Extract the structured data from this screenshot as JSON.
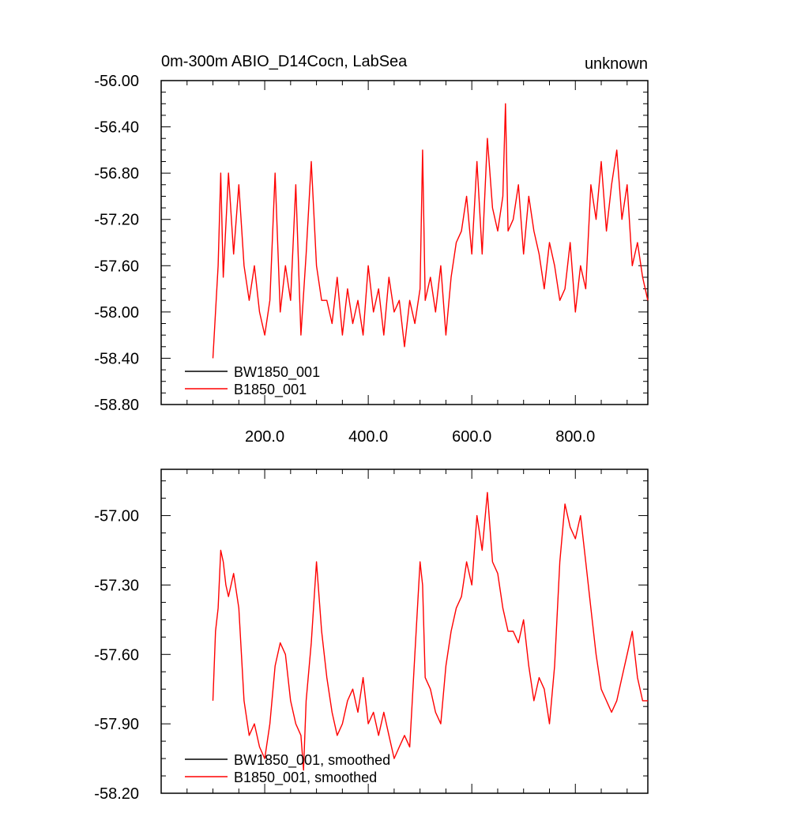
{
  "chart_data": [
    {
      "type": "line",
      "title": "0m-300m ABIO_D14Cocn, LabSea",
      "subtitle_right": "unknown",
      "xlim": [
        0,
        940
      ],
      "ylim": [
        -58.8,
        -56.0
      ],
      "xticks": [
        200,
        400,
        600,
        800
      ],
      "xtick_labels": [
        "200.0",
        "400.0",
        "600.0",
        "800.0"
      ],
      "yticks": [
        -56.0,
        -56.4,
        -56.8,
        -57.2,
        -57.6,
        -58.0,
        -58.4,
        -58.8
      ],
      "ytick_labels": [
        "-56.00",
        "-56.40",
        "-56.80",
        "-57.20",
        "-57.60",
        "-58.00",
        "-58.40",
        "-58.80"
      ],
      "legend": "bottom-left",
      "series": [
        {
          "name": "BW1850_001",
          "color": "#000000",
          "x": [],
          "y": []
        },
        {
          "name": "B1850_001",
          "color": "#ff0000",
          "x": [
            100,
            110,
            115,
            120,
            130,
            140,
            150,
            160,
            170,
            180,
            190,
            200,
            210,
            220,
            230,
            240,
            250,
            260,
            270,
            280,
            290,
            300,
            310,
            320,
            330,
            340,
            350,
            360,
            370,
            380,
            390,
            400,
            410,
            420,
            430,
            440,
            450,
            460,
            470,
            480,
            490,
            500,
            505,
            510,
            520,
            530,
            540,
            550,
            560,
            570,
            580,
            590,
            600,
            610,
            620,
            630,
            640,
            650,
            660,
            665,
            670,
            680,
            690,
            700,
            710,
            720,
            730,
            740,
            750,
            760,
            770,
            780,
            790,
            800,
            810,
            820,
            830,
            840,
            850,
            860,
            870,
            880,
            890,
            900,
            910,
            920,
            930,
            940
          ],
          "y": [
            -58.4,
            -57.6,
            -56.8,
            -57.7,
            -56.8,
            -57.5,
            -56.9,
            -57.6,
            -57.9,
            -57.6,
            -58.0,
            -58.2,
            -57.9,
            -56.8,
            -58.0,
            -57.6,
            -57.9,
            -56.9,
            -58.2,
            -57.5,
            -56.7,
            -57.6,
            -57.9,
            -57.9,
            -58.1,
            -57.7,
            -58.2,
            -57.8,
            -58.1,
            -57.9,
            -58.2,
            -57.6,
            -58.0,
            -57.8,
            -58.2,
            -57.7,
            -58.0,
            -57.9,
            -58.3,
            -57.9,
            -58.1,
            -57.8,
            -56.6,
            -57.9,
            -57.7,
            -58.0,
            -57.6,
            -58.2,
            -57.7,
            -57.4,
            -57.3,
            -57.0,
            -57.5,
            -56.7,
            -57.5,
            -56.5,
            -57.1,
            -57.3,
            -57.0,
            -56.2,
            -57.3,
            -57.2,
            -56.9,
            -57.5,
            -57.0,
            -57.3,
            -57.5,
            -57.8,
            -57.4,
            -57.6,
            -57.9,
            -57.8,
            -57.4,
            -58.0,
            -57.6,
            -57.8,
            -56.9,
            -57.2,
            -56.7,
            -57.3,
            -56.9,
            -56.6,
            -57.2,
            -56.9,
            -57.6,
            -57.4,
            -57.7,
            -57.9
          ]
        }
      ]
    },
    {
      "type": "line",
      "xlim": [
        0,
        940
      ],
      "ylim": [
        -58.2,
        -56.8
      ],
      "yticks": [
        -57.0,
        -57.3,
        -57.6,
        -57.9,
        -58.2
      ],
      "ytick_labels": [
        "-57.00",
        "-57.30",
        "-57.60",
        "-57.90",
        "-58.20"
      ],
      "legend": "bottom-left",
      "series": [
        {
          "name": "BW1850_001, smoothed",
          "color": "#000000",
          "x": [],
          "y": []
        },
        {
          "name": "B1850_001, smoothed",
          "color": "#ff0000",
          "x": [
            100,
            105,
            110,
            115,
            120,
            125,
            130,
            140,
            150,
            160,
            170,
            180,
            190,
            200,
            210,
            220,
            230,
            240,
            250,
            260,
            270,
            275,
            280,
            290,
            300,
            310,
            320,
            330,
            340,
            350,
            360,
            370,
            380,
            390,
            400,
            410,
            420,
            430,
            440,
            450,
            460,
            470,
            480,
            490,
            500,
            505,
            510,
            520,
            530,
            540,
            550,
            560,
            570,
            580,
            590,
            600,
            610,
            620,
            630,
            640,
            650,
            660,
            670,
            680,
            690,
            700,
            710,
            720,
            730,
            740,
            750,
            760,
            770,
            780,
            790,
            800,
            810,
            820,
            830,
            840,
            850,
            860,
            870,
            880,
            890,
            900,
            910,
            920,
            930,
            940
          ],
          "y": [
            -57.8,
            -57.5,
            -57.4,
            -57.15,
            -57.2,
            -57.3,
            -57.35,
            -57.25,
            -57.4,
            -57.8,
            -57.95,
            -57.9,
            -58.0,
            -58.05,
            -57.9,
            -57.65,
            -57.55,
            -57.6,
            -57.8,
            -57.9,
            -57.95,
            -58.1,
            -57.8,
            -57.55,
            -57.2,
            -57.5,
            -57.7,
            -57.85,
            -57.95,
            -57.9,
            -57.8,
            -57.75,
            -57.85,
            -57.7,
            -57.9,
            -57.85,
            -57.95,
            -57.85,
            -57.95,
            -58.05,
            -58.0,
            -57.95,
            -58.0,
            -57.6,
            -57.2,
            -57.3,
            -57.7,
            -57.75,
            -57.85,
            -57.9,
            -57.65,
            -57.5,
            -57.4,
            -57.35,
            -57.2,
            -57.3,
            -57.0,
            -57.15,
            -56.9,
            -57.2,
            -57.25,
            -57.4,
            -57.5,
            -57.5,
            -57.55,
            -57.45,
            -57.65,
            -57.8,
            -57.7,
            -57.75,
            -57.9,
            -57.65,
            -57.2,
            -56.95,
            -57.05,
            -57.1,
            -57.0,
            -57.2,
            -57.4,
            -57.6,
            -57.75,
            -57.8,
            -57.85,
            -57.8,
            -57.7,
            -57.6,
            -57.5,
            -57.7,
            -57.8,
            -57.8
          ]
        }
      ]
    }
  ]
}
